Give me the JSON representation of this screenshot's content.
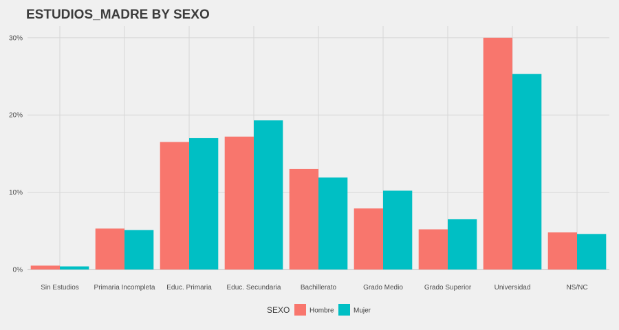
{
  "chart_data": {
    "type": "bar",
    "title": "ESTUDIOS_MADRE BY SEXO",
    "xlabel": "",
    "ylabel": "",
    "categories": [
      "Sin Estudios",
      "Primaria Incompleta",
      "Educ. Primaria",
      "Educ. Secundaria",
      "Bachillerato",
      "Grado Medio",
      "Grado Superior",
      "Universidad",
      "NS/NC"
    ],
    "series": [
      {
        "name": "Hombre",
        "color": "#f8766d",
        "values": [
          0.5,
          5.3,
          16.5,
          17.2,
          13.0,
          7.9,
          5.2,
          30.0,
          4.8
        ]
      },
      {
        "name": "Mujer",
        "color": "#00bfc4",
        "values": [
          0.4,
          5.1,
          17.0,
          19.3,
          11.9,
          10.2,
          6.5,
          25.3,
          4.6
        ]
      }
    ],
    "ylim": [
      0,
      31.5
    ],
    "yticks": [
      0,
      10,
      20,
      30
    ],
    "ytick_labels": [
      "0%",
      "10%",
      "20%",
      "30%"
    ],
    "grid": true,
    "legend": {
      "title": "SEXO",
      "position": "bottom"
    }
  }
}
